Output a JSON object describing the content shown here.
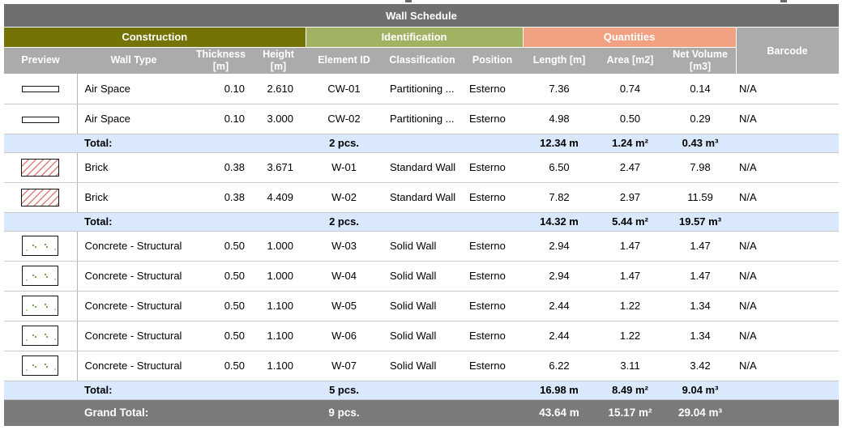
{
  "title": "Wall Schedule",
  "group_headers": {
    "construction": "Construction",
    "identification": "Identification",
    "quantities": "Quantities",
    "barcode": "Barcode"
  },
  "column_headers": {
    "preview": "Preview",
    "wall_type": "Wall Type",
    "thickness": "Thickness [m]",
    "height": "Height [m]",
    "element_id": "Element ID",
    "classification": "Classification",
    "position": "Position",
    "length": "Length [m]",
    "area": "Area [m2]",
    "net_volume": "Net Volume [m3]"
  },
  "total_label": "Total:",
  "grand_total_label": "Grand Total:",
  "sections": [
    {
      "rows": [
        {
          "preview": "air-space",
          "wall_type": "Air Space",
          "thickness": "0.10",
          "height": "2.610",
          "element_id": "CW-01",
          "classification": "Partitioning ...",
          "position": "Esterno",
          "length": "7.36",
          "area": "0.74",
          "net_volume": "0.14",
          "barcode": "N/A"
        },
        {
          "preview": "air-space",
          "wall_type": "Air Space",
          "thickness": "0.10",
          "height": "3.000",
          "element_id": "CW-02",
          "classification": "Partitioning ...",
          "position": "Esterno",
          "length": "4.98",
          "area": "0.50",
          "net_volume": "0.29",
          "barcode": "N/A"
        }
      ],
      "total": {
        "pcs": "2 pcs.",
        "length": "12.34 m",
        "area": "1.24 m²",
        "net_volume": "0.43 m³"
      }
    },
    {
      "rows": [
        {
          "preview": "brick",
          "wall_type": "Brick",
          "thickness": "0.38",
          "height": "3.671",
          "element_id": "W-01",
          "classification": "Standard Wall",
          "position": "Esterno",
          "length": "6.50",
          "area": "2.47",
          "net_volume": "7.98",
          "barcode": "N/A"
        },
        {
          "preview": "brick",
          "wall_type": "Brick",
          "thickness": "0.38",
          "height": "4.409",
          "element_id": "W-02",
          "classification": "Standard Wall",
          "position": "Esterno",
          "length": "7.82",
          "area": "2.97",
          "net_volume": "11.59",
          "barcode": "N/A"
        }
      ],
      "total": {
        "pcs": "2 pcs.",
        "length": "14.32 m",
        "area": "5.44 m²",
        "net_volume": "19.57 m³"
      }
    },
    {
      "rows": [
        {
          "preview": "concrete",
          "wall_type": "Concrete - Structural",
          "thickness": "0.50",
          "height": "1.000",
          "element_id": "W-03",
          "classification": "Solid Wall",
          "position": "Esterno",
          "length": "2.94",
          "area": "1.47",
          "net_volume": "1.47",
          "barcode": "N/A"
        },
        {
          "preview": "concrete",
          "wall_type": "Concrete - Structural",
          "thickness": "0.50",
          "height": "1.000",
          "element_id": "W-04",
          "classification": "Solid Wall",
          "position": "Esterno",
          "length": "2.94",
          "area": "1.47",
          "net_volume": "1.47",
          "barcode": "N/A"
        },
        {
          "preview": "concrete",
          "wall_type": "Concrete - Structural",
          "thickness": "0.50",
          "height": "1.100",
          "element_id": "W-05",
          "classification": "Solid Wall",
          "position": "Esterno",
          "length": "2.44",
          "area": "1.22",
          "net_volume": "1.34",
          "barcode": "N/A"
        },
        {
          "preview": "concrete",
          "wall_type": "Concrete - Structural",
          "thickness": "0.50",
          "height": "1.100",
          "element_id": "W-06",
          "classification": "Solid Wall",
          "position": "Esterno",
          "length": "2.44",
          "area": "1.22",
          "net_volume": "1.34",
          "barcode": "N/A"
        },
        {
          "preview": "concrete",
          "wall_type": "Concrete - Structural",
          "thickness": "0.50",
          "height": "1.100",
          "element_id": "W-07",
          "classification": "Solid Wall",
          "position": "Esterno",
          "length": "6.22",
          "area": "3.11",
          "net_volume": "3.42",
          "barcode": "N/A"
        }
      ],
      "total": {
        "pcs": "5 pcs.",
        "length": "16.98 m",
        "area": "8.49 m²",
        "net_volume": "9.04 m³"
      }
    }
  ],
  "grand_total": {
    "pcs": "9 pcs.",
    "length": "43.64 m",
    "area": "15.17 m²",
    "net_volume": "29.04 m³"
  },
  "colors": {
    "title_bar": "#6f6f6f",
    "grand_total_row": "#7a7a7a",
    "header_row": "#ababab",
    "construction_band": "#747306",
    "identification_band": "#a1b262",
    "quantities_band": "#f2a283",
    "preview_cell_bg": "#eef3e8",
    "total_row_bg": "#d9e8fc",
    "brick_hatch": "#dd7f76",
    "concrete_speck": "#6a9a41"
  }
}
